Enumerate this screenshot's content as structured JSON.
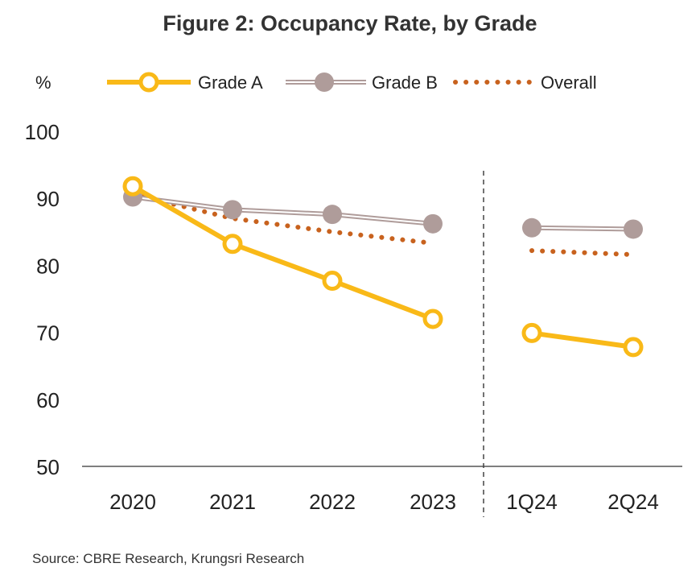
{
  "chart_data": {
    "type": "line",
    "title": "Figure 2: Occupancy Rate, by Grade",
    "ylabel": "%",
    "xlabel": "",
    "categories": [
      "2020",
      "2021",
      "2022",
      "2023",
      "1Q24",
      "2Q24"
    ],
    "ylim": [
      50,
      100
    ],
    "yticks": [
      "50",
      "60",
      "70",
      "80",
      "90",
      "100"
    ],
    "grid": false,
    "legend": "top",
    "series": [
      {
        "name": "Grade A",
        "color": "#F9B918",
        "values": [
          91.8,
          83.2,
          77.7,
          72.0,
          69.9,
          67.8
        ]
      },
      {
        "name": "Grade B",
        "color": "#AF9C9A",
        "values": [
          90.2,
          88.3,
          87.6,
          86.2,
          85.6,
          85.4
        ]
      },
      {
        "name": "Overall",
        "color": "#C8621E",
        "values": [
          90.6,
          87.0,
          85.0,
          83.3,
          82.2,
          81.6
        ]
      }
    ]
  },
  "source": "Source: CBRE Research, Krungsri Research"
}
